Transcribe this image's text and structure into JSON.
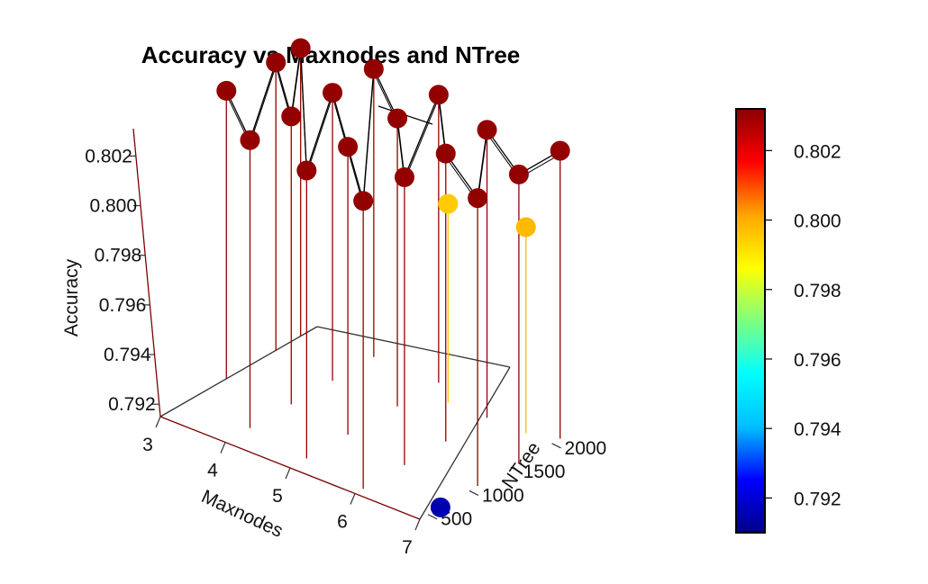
{
  "chart_data": {
    "type": "scatter3d",
    "title": "Accuracy vs Maxnodes and NTree",
    "xlabel": "Maxnodes",
    "ylabel": "NTree",
    "zlabel": "Accuracy",
    "x_ticks": [
      "3",
      "4",
      "5",
      "6",
      "7"
    ],
    "y_ticks": [
      "500",
      "1000",
      "1500",
      "2000"
    ],
    "z_ticks": [
      "0.792",
      "0.794",
      "0.796",
      "0.798",
      "0.800",
      "0.802"
    ],
    "colorbar_ticks": [
      "0.792",
      "0.794",
      "0.796",
      "0.798",
      "0.800",
      "0.802"
    ],
    "colorbar_range": [
      0.791,
      0.8032
    ],
    "colormap": [
      "#00008B",
      "#0000FF",
      "#00BFFF",
      "#00FFFF",
      "#7FFF7F",
      "#FFFF00",
      "#FFA500",
      "#FF0000",
      "#8B0000"
    ],
    "type_lines": true,
    "points": [
      {
        "maxnodes": 3,
        "ntree": 1200,
        "accuracy": 0.8031
      },
      {
        "maxnodes": 3,
        "ntree": 1800,
        "accuracy": 0.8031
      },
      {
        "maxnodes": 3,
        "ntree": 2100,
        "accuracy": 0.8031
      },
      {
        "maxnodes": 4,
        "ntree": 700,
        "accuracy": 0.8031
      },
      {
        "maxnodes": 4,
        "ntree": 1200,
        "accuracy": 0.8031
      },
      {
        "maxnodes": 4,
        "ntree": 1700,
        "accuracy": 0.8031
      },
      {
        "maxnodes": 4,
        "ntree": 2200,
        "accuracy": 0.8031
      },
      {
        "maxnodes": 5,
        "ntree": 600,
        "accuracy": 0.8031
      },
      {
        "maxnodes": 5,
        "ntree": 1100,
        "accuracy": 0.8031
      },
      {
        "maxnodes": 5,
        "ntree": 1700,
        "accuracy": 0.8031
      },
      {
        "maxnodes": 5,
        "ntree": 2200,
        "accuracy": 0.8031
      },
      {
        "maxnodes": 6,
        "ntree": 500,
        "accuracy": 0.8031
      },
      {
        "maxnodes": 6,
        "ntree": 1000,
        "accuracy": 0.8031
      },
      {
        "maxnodes": 6,
        "ntree": 1500,
        "accuracy": 0.8031
      },
      {
        "maxnodes": 6,
        "ntree": 2000,
        "accuracy": 0.8031
      },
      {
        "maxnodes": 7,
        "ntree": 1100,
        "accuracy": 0.8031
      },
      {
        "maxnodes": 7,
        "ntree": 1600,
        "accuracy": 0.8031
      },
      {
        "maxnodes": 7,
        "ntree": 2100,
        "accuracy": 0.8031
      },
      {
        "maxnodes": 5.4,
        "ntree": 2000,
        "accuracy": 0.7995
      },
      {
        "maxnodes": 6.6,
        "ntree": 2000,
        "accuracy": 0.7998
      },
      {
        "maxnodes": 7,
        "ntree": 650,
        "accuracy": 0.7915
      }
    ]
  }
}
